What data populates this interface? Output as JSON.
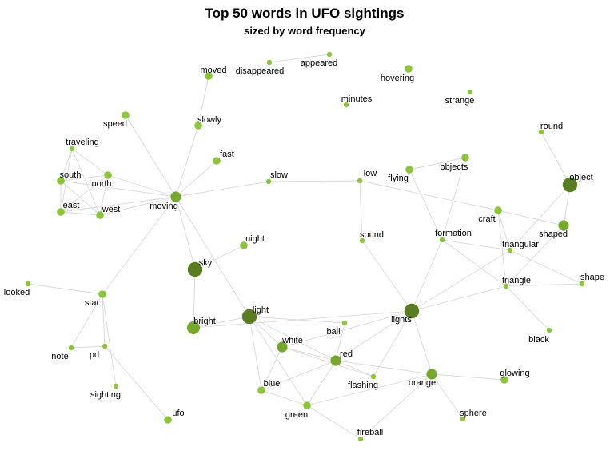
{
  "title": "Top 50 words in UFO sightings",
  "subtitle": "sized by word frequency",
  "colors": {
    "node_light": "#8cc43b",
    "node_mid": "#76a82e",
    "node_dark": "#5a7d22",
    "edge": "#d9d9d9"
  },
  "nodes": [
    {
      "word": "moved",
      "level": 2
    },
    {
      "word": "disappeared",
      "level": 1
    },
    {
      "word": "appeared",
      "level": 1
    },
    {
      "word": "hovering",
      "level": 2
    },
    {
      "word": "minutes",
      "level": 1
    },
    {
      "word": "strange",
      "level": 1
    },
    {
      "word": "speed",
      "level": 2
    },
    {
      "word": "slowly",
      "level": 2
    },
    {
      "word": "traveling",
      "level": 1
    },
    {
      "word": "fast",
      "level": 2
    },
    {
      "word": "round",
      "level": 1
    },
    {
      "word": "south",
      "level": 2
    },
    {
      "word": "north",
      "level": 2
    },
    {
      "word": "slow",
      "level": 1
    },
    {
      "word": "low",
      "level": 1
    },
    {
      "word": "flying",
      "level": 2
    },
    {
      "word": "objects",
      "level": 2
    },
    {
      "word": "object",
      "level": 5
    },
    {
      "word": "moving",
      "level": 3
    },
    {
      "word": "east",
      "level": 2
    },
    {
      "word": "west",
      "level": 2
    },
    {
      "word": "craft",
      "level": 2
    },
    {
      "word": "shaped",
      "level": 3
    },
    {
      "word": "sound",
      "level": 1
    },
    {
      "word": "formation",
      "level": 1
    },
    {
      "word": "night",
      "level": 2
    },
    {
      "word": "triangular",
      "level": 1
    },
    {
      "word": "sky",
      "level": 5
    },
    {
      "word": "shape",
      "level": 1
    },
    {
      "word": "triangle",
      "level": 1
    },
    {
      "word": "looked",
      "level": 1
    },
    {
      "word": "star",
      "level": 2
    },
    {
      "word": "light",
      "level": 5
    },
    {
      "word": "lights",
      "level": 5
    },
    {
      "word": "bright",
      "level": 4
    },
    {
      "word": "ball",
      "level": 1
    },
    {
      "word": "black",
      "level": 1
    },
    {
      "word": "white",
      "level": 3
    },
    {
      "word": "note",
      "level": 1
    },
    {
      "word": "pd",
      "level": 1
    },
    {
      "word": "red",
      "level": 3
    },
    {
      "word": "glowing",
      "level": 2
    },
    {
      "word": "orange",
      "level": 3
    },
    {
      "word": "blue",
      "level": 2
    },
    {
      "word": "flashing",
      "level": 1
    },
    {
      "word": "sighting",
      "level": 1
    },
    {
      "word": "green",
      "level": 2
    },
    {
      "word": "sphere",
      "level": 1
    },
    {
      "word": "ufo",
      "level": 2
    },
    {
      "word": "fireball",
      "level": 1
    }
  ],
  "edges": [
    [
      "moved",
      "slowly"
    ],
    [
      "slowly",
      "moving"
    ],
    [
      "disappeared",
      "appeared"
    ],
    [
      "speed",
      "moving"
    ],
    [
      "fast",
      "moving"
    ],
    [
      "traveling",
      "south"
    ],
    [
      "traveling",
      "north"
    ],
    [
      "traveling",
      "east"
    ],
    [
      "traveling",
      "west"
    ],
    [
      "south",
      "north"
    ],
    [
      "south",
      "east"
    ],
    [
      "south",
      "west"
    ],
    [
      "south",
      "moving"
    ],
    [
      "north",
      "moving"
    ],
    [
      "north",
      "east"
    ],
    [
      "north",
      "west"
    ],
    [
      "east",
      "west"
    ],
    [
      "east",
      "moving"
    ],
    [
      "west",
      "moving"
    ],
    [
      "moving",
      "slow"
    ],
    [
      "moving",
      "sky"
    ],
    [
      "moving",
      "light"
    ],
    [
      "moving",
      "star"
    ],
    [
      "slow",
      "low"
    ],
    [
      "low",
      "craft"
    ],
    [
      "low",
      "sound"
    ],
    [
      "flying",
      "objects"
    ],
    [
      "flying",
      "formation"
    ],
    [
      "objects",
      "formation"
    ],
    [
      "round",
      "object"
    ],
    [
      "object",
      "shaped"
    ],
    [
      "object",
      "triangular"
    ],
    [
      "craft",
      "shaped"
    ],
    [
      "craft",
      "triangular"
    ],
    [
      "craft",
      "triangle"
    ],
    [
      "shaped",
      "triangle"
    ],
    [
      "formation",
      "lights"
    ],
    [
      "formation",
      "triangular"
    ],
    [
      "formation",
      "triangle"
    ],
    [
      "triangular",
      "shape"
    ],
    [
      "triangular",
      "lights"
    ],
    [
      "triangle",
      "shape"
    ],
    [
      "triangle",
      "lights"
    ],
    [
      "triangle",
      "black"
    ],
    [
      "sound",
      "lights"
    ],
    [
      "night",
      "sky"
    ],
    [
      "sky",
      "bright"
    ],
    [
      "looked",
      "star"
    ],
    [
      "star",
      "note"
    ],
    [
      "star",
      "pd"
    ],
    [
      "star",
      "sighting"
    ],
    [
      "note",
      "pd"
    ],
    [
      "pd",
      "ufo"
    ],
    [
      "bright",
      "light"
    ],
    [
      "bright",
      "lights"
    ],
    [
      "light",
      "ball"
    ],
    [
      "light",
      "white"
    ],
    [
      "light",
      "red"
    ],
    [
      "light",
      "blue"
    ],
    [
      "light",
      "green"
    ],
    [
      "lights",
      "red"
    ],
    [
      "lights",
      "orange"
    ],
    [
      "lights",
      "flashing"
    ],
    [
      "lights",
      "white"
    ],
    [
      "ball",
      "red"
    ],
    [
      "white",
      "blue"
    ],
    [
      "white",
      "red"
    ],
    [
      "white",
      "flashing"
    ],
    [
      "red",
      "blue"
    ],
    [
      "red",
      "green"
    ],
    [
      "red",
      "orange"
    ],
    [
      "red",
      "flashing"
    ],
    [
      "blue",
      "green"
    ],
    [
      "orange",
      "glowing"
    ],
    [
      "orange",
      "sphere"
    ],
    [
      "orange",
      "fireball"
    ],
    [
      "orange",
      "green"
    ],
    [
      "green",
      "fireball"
    ]
  ]
}
